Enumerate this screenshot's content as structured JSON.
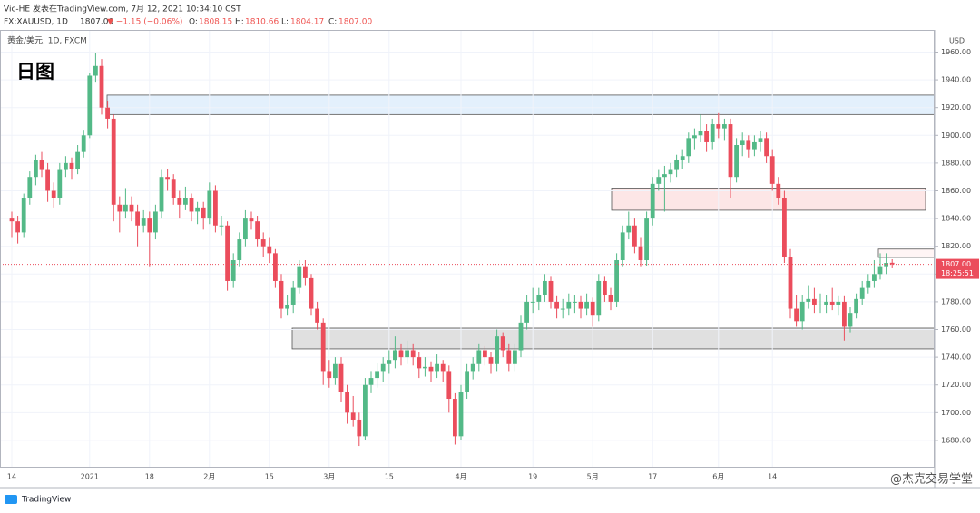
{
  "header": {
    "author_line": "Vic-HE 发表在TradingView.com, 7月 12, 2021 10:34:10 CST",
    "symbol": "FX:XAUUSD, 1D",
    "last": "1807.00",
    "change": "▼ −1.15 (−0.06%)",
    "o_label": "O:",
    "o_value": "1808.15",
    "h_label": "H:",
    "h_value": "1810.66",
    "l_label": "L:",
    "l_value": "1804.17",
    "c_label": "C:",
    "c_value": "1807.00"
  },
  "chart_data": {
    "type": "candlestick",
    "subtitle": "黄金/美元, 1D, FXCM",
    "title": "日图",
    "y_unit": "USD",
    "last_price_label": "1807.00",
    "countdown": "18:25:51",
    "up_color": "#53b987",
    "down_color": "#eb4d5c",
    "grid": true,
    "ylim": [
      1661,
      1976
    ],
    "yticks": [
      {
        "value": 1680,
        "label": "1680.00"
      },
      {
        "value": 1700,
        "label": "1700.00"
      },
      {
        "value": 1720,
        "label": "1720.00"
      },
      {
        "value": 1740,
        "label": "1740.00"
      },
      {
        "value": 1760,
        "label": "1760.00"
      },
      {
        "value": 1780,
        "label": "1780.00"
      },
      {
        "value": 1800,
        "label": "1800.00"
      },
      {
        "value": 1820,
        "label": "1820.00"
      },
      {
        "value": 1840,
        "label": "1840.00"
      },
      {
        "value": 1860,
        "label": "1860.00"
      },
      {
        "value": 1880,
        "label": "1880.00"
      },
      {
        "value": 1900,
        "label": "1900.00"
      },
      {
        "value": 1920,
        "label": "1920.00"
      },
      {
        "value": 1940,
        "label": "1940.00"
      },
      {
        "value": 1960,
        "label": "1960.00"
      }
    ],
    "zones": [
      {
        "low": 1915,
        "high": 1929,
        "color": "#e3f0fc"
      },
      {
        "low": 1846,
        "high": 1862,
        "color": "#fde6e6"
      },
      {
        "low": 1746,
        "high": 1761,
        "color": "#e0e0e0"
      },
      {
        "low": 1812,
        "high": 1818,
        "color": "#fff5f5"
      }
    ],
    "categories": [
      "14",
      null,
      null,
      null,
      null,
      null,
      null,
      null,
      null,
      null,
      null,
      null,
      null,
      "2021",
      null,
      null,
      null,
      null,
      null,
      null,
      null,
      null,
      null,
      "18",
      null,
      null,
      null,
      null,
      null,
      null,
      null,
      null,
      null,
      "2月",
      null,
      null,
      null,
      null,
      null,
      null,
      null,
      null,
      null,
      "15",
      null,
      null,
      null,
      null,
      null,
      null,
      null,
      null,
      null,
      "3月",
      null,
      null,
      null,
      null,
      null,
      null,
      null,
      null,
      null,
      "15",
      null,
      null,
      null,
      null,
      null,
      null,
      null,
      null,
      null,
      null,
      null,
      "4月",
      null,
      null,
      null,
      null,
      null,
      null,
      null,
      null,
      null,
      null,
      null,
      "19",
      null,
      null,
      null,
      null,
      null,
      null,
      null,
      null,
      null,
      "5月",
      null,
      null,
      null,
      null,
      null,
      null,
      null,
      null,
      null,
      "17",
      null,
      null,
      null,
      null,
      null,
      null,
      null,
      null,
      null,
      null,
      "6月",
      null,
      null,
      null,
      null,
      null,
      null,
      null,
      null,
      "14",
      null,
      null,
      null,
      null,
      null,
      null,
      null,
      null,
      null,
      null,
      null,
      null,
      null,
      null,
      null,
      null,
      null,
      null,
      null,
      null
    ],
    "candles": [
      [
        1840,
        1845,
        1826,
        1838
      ],
      [
        1838,
        1842,
        1822,
        1830
      ],
      [
        1830,
        1858,
        1826,
        1855
      ],
      [
        1855,
        1874,
        1850,
        1870
      ],
      [
        1870,
        1886,
        1864,
        1882
      ],
      [
        1882,
        1888,
        1870,
        1875
      ],
      [
        1875,
        1880,
        1852,
        1860
      ],
      [
        1860,
        1866,
        1848,
        1855
      ],
      [
        1855,
        1880,
        1850,
        1875
      ],
      [
        1875,
        1885,
        1870,
        1880
      ],
      [
        1880,
        1884,
        1868,
        1876
      ],
      [
        1876,
        1893,
        1872,
        1888
      ],
      [
        1888,
        1904,
        1884,
        1900
      ],
      [
        1900,
        1945,
        1898,
        1943
      ],
      [
        1943,
        1959,
        1938,
        1950
      ],
      [
        1950,
        1955,
        1915,
        1920
      ],
      [
        1920,
        1925,
        1905,
        1912
      ],
      [
        1912,
        1915,
        1838,
        1850
      ],
      [
        1850,
        1856,
        1830,
        1845
      ],
      [
        1845,
        1862,
        1840,
        1850
      ],
      [
        1850,
        1856,
        1838,
        1845
      ],
      [
        1845,
        1850,
        1820,
        1835
      ],
      [
        1835,
        1846,
        1830,
        1840
      ],
      [
        1840,
        1845,
        1805,
        1830
      ],
      [
        1830,
        1850,
        1825,
        1845
      ],
      [
        1845,
        1875,
        1840,
        1870
      ],
      [
        1870,
        1876,
        1860,
        1868
      ],
      [
        1868,
        1872,
        1850,
        1855
      ],
      [
        1855,
        1860,
        1840,
        1850
      ],
      [
        1850,
        1863,
        1846,
        1855
      ],
      [
        1855,
        1858,
        1838,
        1845
      ],
      [
        1845,
        1852,
        1836,
        1848
      ],
      [
        1848,
        1852,
        1832,
        1840
      ],
      [
        1840,
        1866,
        1836,
        1860
      ],
      [
        1860,
        1864,
        1830,
        1835
      ],
      [
        1835,
        1842,
        1828,
        1835
      ],
      [
        1835,
        1838,
        1788,
        1795
      ],
      [
        1795,
        1815,
        1790,
        1810
      ],
      [
        1810,
        1830,
        1805,
        1825
      ],
      [
        1825,
        1846,
        1820,
        1840
      ],
      [
        1840,
        1845,
        1832,
        1838
      ],
      [
        1838,
        1842,
        1820,
        1825
      ],
      [
        1825,
        1830,
        1812,
        1820
      ],
      [
        1820,
        1826,
        1808,
        1815
      ],
      [
        1815,
        1818,
        1790,
        1795
      ],
      [
        1795,
        1800,
        1768,
        1775
      ],
      [
        1775,
        1785,
        1770,
        1778
      ],
      [
        1778,
        1795,
        1772,
        1790
      ],
      [
        1790,
        1810,
        1786,
        1805
      ],
      [
        1805,
        1810,
        1792,
        1797
      ],
      [
        1797,
        1800,
        1770,
        1775
      ],
      [
        1775,
        1780,
        1760,
        1765
      ],
      [
        1765,
        1768,
        1720,
        1730
      ],
      [
        1730,
        1738,
        1718,
        1725
      ],
      [
        1725,
        1740,
        1720,
        1735
      ],
      [
        1735,
        1740,
        1708,
        1715
      ],
      [
        1715,
        1720,
        1692,
        1700
      ],
      [
        1700,
        1712,
        1690,
        1695
      ],
      [
        1695,
        1700,
        1676,
        1683
      ],
      [
        1683,
        1725,
        1680,
        1720
      ],
      [
        1720,
        1730,
        1714,
        1725
      ],
      [
        1725,
        1736,
        1718,
        1730
      ],
      [
        1730,
        1740,
        1722,
        1735
      ],
      [
        1735,
        1745,
        1728,
        1738
      ],
      [
        1738,
        1755,
        1732,
        1745
      ],
      [
        1745,
        1750,
        1734,
        1740
      ],
      [
        1740,
        1752,
        1735,
        1745
      ],
      [
        1745,
        1750,
        1734,
        1740
      ],
      [
        1740,
        1744,
        1725,
        1732
      ],
      [
        1732,
        1740,
        1726,
        1733
      ],
      [
        1733,
        1737,
        1722,
        1730
      ],
      [
        1730,
        1742,
        1725,
        1735
      ],
      [
        1735,
        1738,
        1722,
        1730
      ],
      [
        1730,
        1734,
        1700,
        1710
      ],
      [
        1710,
        1714,
        1677,
        1683
      ],
      [
        1683,
        1720,
        1680,
        1715
      ],
      [
        1715,
        1735,
        1710,
        1730
      ],
      [
        1730,
        1740,
        1724,
        1735
      ],
      [
        1735,
        1750,
        1730,
        1745
      ],
      [
        1745,
        1748,
        1734,
        1740
      ],
      [
        1740,
        1744,
        1728,
        1735
      ],
      [
        1735,
        1760,
        1730,
        1755
      ],
      [
        1755,
        1758,
        1740,
        1745
      ],
      [
        1745,
        1750,
        1730,
        1735
      ],
      [
        1735,
        1750,
        1730,
        1745
      ],
      [
        1745,
        1770,
        1740,
        1765
      ],
      [
        1765,
        1785,
        1760,
        1780
      ],
      [
        1780,
        1790,
        1772,
        1780
      ],
      [
        1780,
        1790,
        1774,
        1785
      ],
      [
        1785,
        1800,
        1780,
        1795
      ],
      [
        1795,
        1798,
        1775,
        1780
      ],
      [
        1780,
        1784,
        1768,
        1775
      ],
      [
        1775,
        1782,
        1768,
        1775
      ],
      [
        1775,
        1786,
        1770,
        1780
      ],
      [
        1780,
        1785,
        1772,
        1780
      ],
      [
        1780,
        1784,
        1768,
        1775
      ],
      [
        1775,
        1786,
        1770,
        1780
      ],
      [
        1780,
        1783,
        1762,
        1770
      ],
      [
        1770,
        1800,
        1766,
        1795
      ],
      [
        1795,
        1798,
        1780,
        1785
      ],
      [
        1785,
        1790,
        1774,
        1780
      ],
      [
        1780,
        1815,
        1776,
        1810
      ],
      [
        1810,
        1835,
        1805,
        1830
      ],
      [
        1830,
        1845,
        1825,
        1835
      ],
      [
        1835,
        1840,
        1815,
        1820
      ],
      [
        1820,
        1826,
        1805,
        1810
      ],
      [
        1810,
        1845,
        1806,
        1840
      ],
      [
        1840,
        1870,
        1835,
        1865
      ],
      [
        1865,
        1875,
        1860,
        1870
      ],
      [
        1870,
        1878,
        1845,
        1872
      ],
      [
        1872,
        1880,
        1866,
        1875
      ],
      [
        1875,
        1886,
        1870,
        1882
      ],
      [
        1882,
        1890,
        1876,
        1885
      ],
      [
        1885,
        1902,
        1880,
        1898
      ],
      [
        1898,
        1905,
        1890,
        1900
      ],
      [
        1900,
        1915,
        1895,
        1903
      ],
      [
        1903,
        1908,
        1888,
        1895
      ],
      [
        1895,
        1912,
        1890,
        1908
      ],
      [
        1908,
        1916,
        1898,
        1905
      ],
      [
        1905,
        1912,
        1896,
        1908
      ],
      [
        1908,
        1912,
        1855,
        1870
      ],
      [
        1870,
        1898,
        1866,
        1893
      ],
      [
        1893,
        1902,
        1885,
        1896
      ],
      [
        1896,
        1900,
        1884,
        1890
      ],
      [
        1890,
        1900,
        1885,
        1895
      ],
      [
        1895,
        1903,
        1888,
        1898
      ],
      [
        1898,
        1902,
        1880,
        1885
      ],
      [
        1885,
        1890,
        1860,
        1865
      ],
      [
        1865,
        1870,
        1850,
        1855
      ],
      [
        1855,
        1860,
        1808,
        1812
      ],
      [
        1812,
        1818,
        1768,
        1775
      ],
      [
        1775,
        1785,
        1762,
        1766
      ],
      [
        1766,
        1785,
        1760,
        1780
      ],
      [
        1780,
        1792,
        1775,
        1782
      ],
      [
        1782,
        1790,
        1772,
        1778
      ],
      [
        1778,
        1786,
        1772,
        1778
      ],
      [
        1778,
        1785,
        1772,
        1780
      ],
      [
        1780,
        1790,
        1774,
        1778
      ],
      [
        1778,
        1784,
        1770,
        1780
      ],
      [
        1780,
        1784,
        1752,
        1762
      ],
      [
        1762,
        1776,
        1758,
        1772
      ],
      [
        1772,
        1786,
        1768,
        1782
      ],
      [
        1782,
        1795,
        1778,
        1790
      ],
      [
        1790,
        1800,
        1786,
        1795
      ],
      [
        1795,
        1810,
        1790,
        1800
      ],
      [
        1800,
        1815,
        1796,
        1805
      ],
      [
        1805,
        1815,
        1800,
        1808
      ],
      [
        1808.15,
        1810.66,
        1804.17,
        1807
      ]
    ]
  },
  "footer": {
    "brand": "TradingView",
    "watermark": "@杰克交易学堂"
  }
}
